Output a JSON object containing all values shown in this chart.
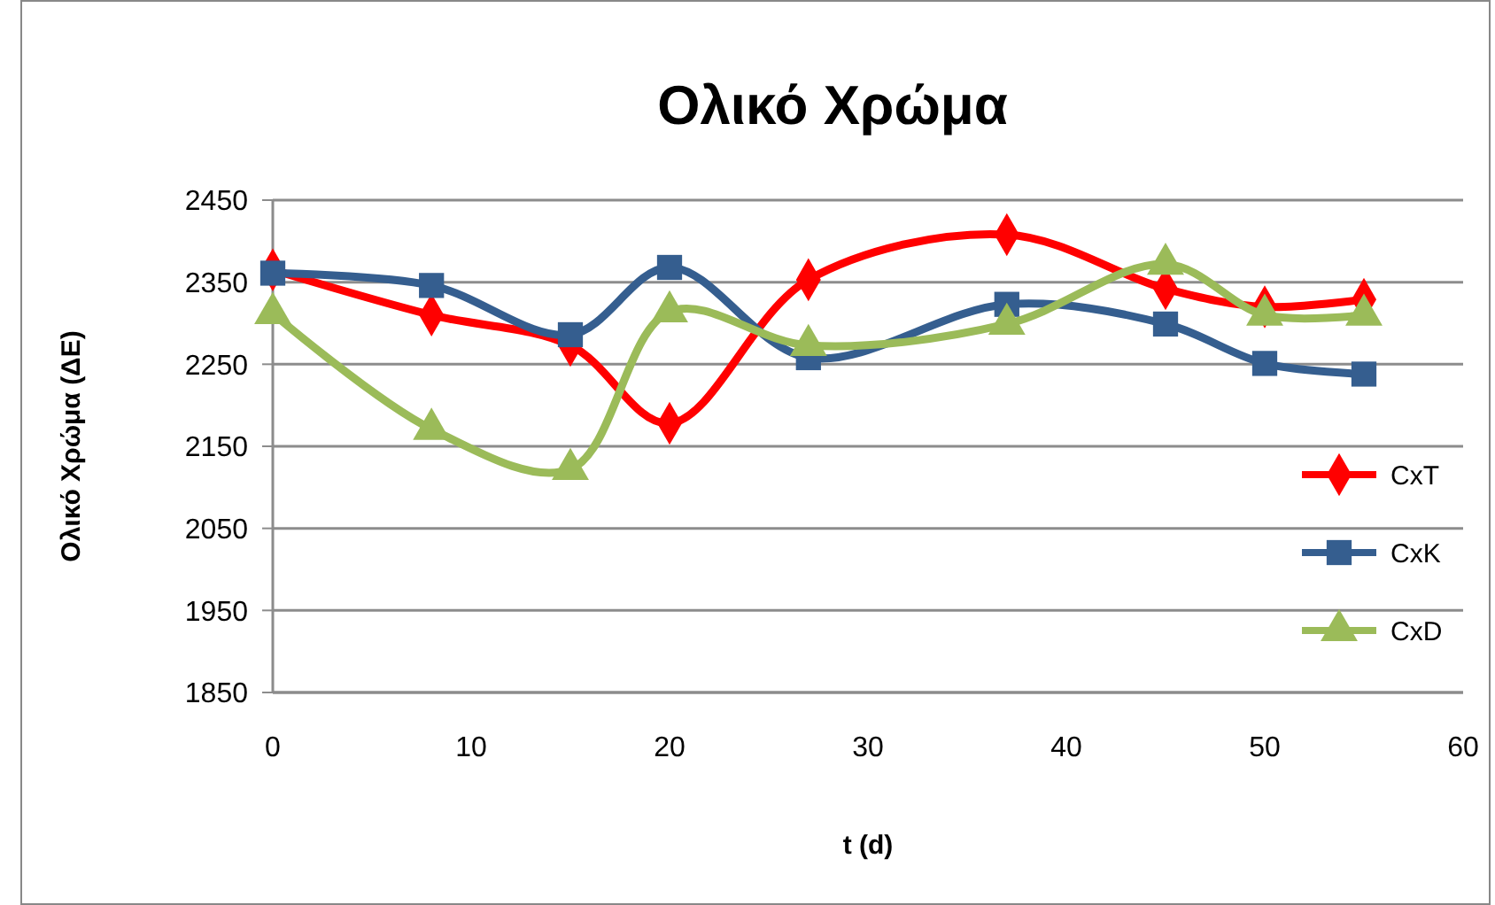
{
  "chart_data": {
    "type": "line",
    "title": "Ολικό Χρώμα",
    "xlabel": "t (d)",
    "ylabel": "Ολικό Χρώμα (ΔΕ)",
    "xlim": [
      0,
      60
    ],
    "xticks": [
      0,
      10,
      20,
      30,
      40,
      50,
      60
    ],
    "ylim": [
      1850,
      2450
    ],
    "yticks": [
      1850,
      1950,
      2050,
      2150,
      2250,
      2350,
      2450
    ],
    "grid": "y",
    "legend": "right",
    "x": [
      0,
      8,
      15,
      20,
      27,
      37,
      45,
      50,
      55
    ],
    "series": [
      {
        "name": "CxT",
        "color": "#ff0000",
        "marker": "diamond",
        "values": [
          2365,
          2310,
          2273,
          2178,
          2353,
          2408,
          2342,
          2320,
          2329
        ]
      },
      {
        "name": "CxK",
        "color": "#355e8f",
        "marker": "square",
        "values": [
          2361,
          2346,
          2286,
          2368,
          2258,
          2323,
          2299,
          2251,
          2238
        ]
      },
      {
        "name": "CxD",
        "color": "#9bbb59",
        "marker": "triangle",
        "values": [
          2312,
          2171,
          2122,
          2314,
          2273,
          2299,
          2372,
          2310,
          2310
        ]
      }
    ]
  }
}
